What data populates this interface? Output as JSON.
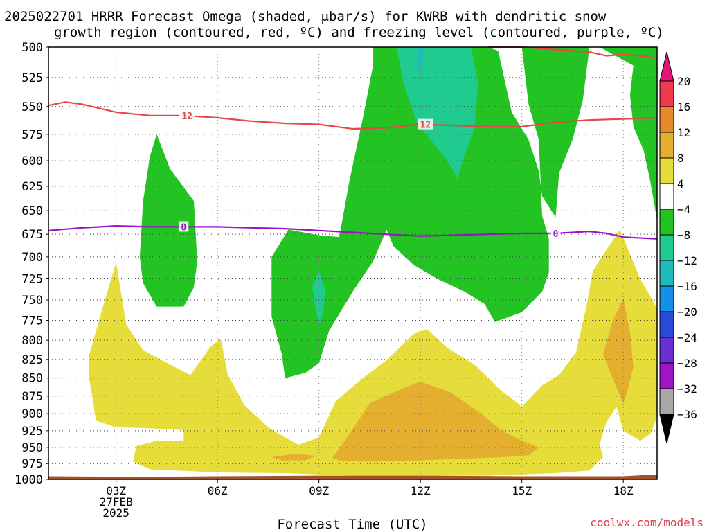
{
  "title_lines": [
    "2025022701 HRRR Forecast Omega (shaded, μbar/s) for KWRB with dendritic snow",
    "growth region (contoured, red, ºC) and freezing level (contoured, purple, ºC)"
  ],
  "credit": "coolwx.com/models",
  "chart_data": {
    "type": "heatmap",
    "xlabel": "Forecast Time (UTC)",
    "x_ticks": [
      {
        "hour": 3,
        "lines": [
          "03Z",
          "27FEB",
          "2025"
        ]
      },
      {
        "hour": 6,
        "lines": [
          "06Z"
        ]
      },
      {
        "hour": 9,
        "lines": [
          "09Z"
        ]
      },
      {
        "hour": 12,
        "lines": [
          "12Z"
        ]
      },
      {
        "hour": 15,
        "lines": [
          "15Z"
        ]
      },
      {
        "hour": 18,
        "lines": [
          "18Z"
        ]
      }
    ],
    "xlim": [
      1,
      19
    ],
    "ylim": [
      1000,
      500
    ],
    "y_ticks": [
      500,
      525,
      550,
      575,
      600,
      625,
      650,
      675,
      700,
      725,
      750,
      775,
      800,
      825,
      850,
      875,
      900,
      925,
      950,
      975,
      1000
    ],
    "y_scale": "log-pressure (inverted)",
    "grid": true,
    "colorbar": {
      "levels": [
        -36,
        -32,
        -28,
        -24,
        -20,
        -16,
        -12,
        -8,
        -4,
        4,
        8,
        12,
        16,
        20
      ],
      "labels": [
        "20",
        "16",
        "12",
        "8",
        "4",
        "−4",
        "−8",
        "−12",
        "−16",
        "−20",
        "−24",
        "−28",
        "−32",
        "−36"
      ],
      "colors_top_to_bottom": [
        "#ee3b4c",
        "#e88a2a",
        "#e4ae2e",
        "#e6dc3a",
        "#ffffff",
        "#22c322",
        "#1fcb8e",
        "#1fbcbc",
        "#1490e6",
        "#2a4ad8",
        "#6a2ed4",
        "#a014c8",
        "#a8a8a8"
      ],
      "over_color": "#e8127a",
      "under_color": "#000000"
    },
    "shaded_regions": [
      {
        "value_class": "4 to 8",
        "color": "#e6dc3a",
        "points": [
          [
            2.2,
            820
          ],
          [
            2.6,
            760
          ],
          [
            3.0,
            706
          ],
          [
            3.3,
            780
          ],
          [
            3.8,
            813
          ],
          [
            4.6,
            832
          ],
          [
            5.2,
            846
          ],
          [
            5.8,
            808
          ],
          [
            6.1,
            798
          ],
          [
            6.3,
            845
          ],
          [
            6.8,
            888
          ],
          [
            7.5,
            920
          ],
          [
            8.0,
            935
          ],
          [
            8.4,
            946
          ],
          [
            9.0,
            935
          ],
          [
            9.5,
            882
          ],
          [
            10.3,
            850
          ],
          [
            11.0,
            826
          ],
          [
            11.8,
            792
          ],
          [
            12.2,
            786
          ],
          [
            12.8,
            810
          ],
          [
            13.6,
            832
          ],
          [
            14.4,
            868
          ],
          [
            14.8,
            882
          ],
          [
            15.0,
            890
          ],
          [
            15.6,
            860
          ],
          [
            16.1,
            846
          ],
          [
            16.6,
            816
          ],
          [
            16.9,
            760
          ],
          [
            17.1,
            716
          ],
          [
            17.5,
            692
          ],
          [
            17.9,
            670
          ],
          [
            18.5,
            725
          ],
          [
            19.0,
            760
          ],
          [
            19.0,
            905
          ],
          [
            18.8,
            930
          ],
          [
            18.5,
            940
          ],
          [
            18.0,
            925
          ],
          [
            17.8,
            890
          ],
          [
            17.5,
            912
          ],
          [
            17.3,
            945
          ],
          [
            17.4,
            965
          ],
          [
            17.0,
            986
          ],
          [
            16.0,
            990
          ],
          [
            14.0,
            994
          ],
          [
            12.0,
            994
          ],
          [
            10.0,
            994
          ],
          [
            8.0,
            990
          ],
          [
            6.0,
            989
          ],
          [
            4.0,
            984
          ],
          [
            3.5,
            972
          ],
          [
            3.6,
            948
          ],
          [
            4.2,
            940
          ],
          [
            5.0,
            940
          ],
          [
            5.0,
            924
          ],
          [
            3.8,
            921
          ],
          [
            3.0,
            920
          ],
          [
            2.4,
            910
          ],
          [
            2.3,
            876
          ],
          [
            2.2,
            850
          ]
        ]
      },
      {
        "value_class": "8 to 12",
        "color": "#e4ae2e",
        "points": [
          [
            9.4,
            966
          ],
          [
            9.9,
            930
          ],
          [
            10.5,
            885
          ],
          [
            11.6,
            862
          ],
          [
            12.0,
            855
          ],
          [
            12.9,
            870
          ],
          [
            13.8,
            900
          ],
          [
            14.4,
            925
          ],
          [
            15.0,
            940
          ],
          [
            15.5,
            950
          ],
          [
            15.2,
            962
          ],
          [
            14.5,
            965
          ],
          [
            13.5,
            967
          ],
          [
            12.0,
            970
          ],
          [
            10.5,
            972
          ],
          [
            9.6,
            970
          ]
        ]
      },
      {
        "value_class": "8 to 12",
        "color": "#e4ae2e",
        "points": [
          [
            7.6,
            965
          ],
          [
            8.3,
            960
          ],
          [
            8.9,
            963
          ],
          [
            8.6,
            970
          ],
          [
            7.9,
            970
          ]
        ]
      },
      {
        "value_class": "8 to 12",
        "color": "#e4ae2e",
        "points": [
          [
            17.4,
            818
          ],
          [
            17.7,
            774
          ],
          [
            18.0,
            748
          ],
          [
            18.2,
            790
          ],
          [
            18.3,
            835
          ],
          [
            18.1,
            872
          ],
          [
            18.0,
            886
          ],
          [
            17.7,
            852
          ]
        ]
      },
      {
        "value_class": "-8 to -4",
        "color": "#22c322",
        "points": [
          [
            3.7,
            700
          ],
          [
            3.8,
            640
          ],
          [
            4.0,
            596
          ],
          [
            4.2,
            575
          ],
          [
            4.6,
            608
          ],
          [
            5.3,
            640
          ],
          [
            5.4,
            705
          ],
          [
            5.3,
            735
          ],
          [
            5.0,
            758
          ],
          [
            4.2,
            758
          ],
          [
            3.8,
            730
          ]
        ]
      },
      {
        "value_class": "-8 to -4",
        "color": "#22c322",
        "points": [
          [
            7.6,
            700
          ],
          [
            8.1,
            670
          ],
          [
            8.4,
            672
          ],
          [
            9.0,
            676
          ],
          [
            9.6,
            678
          ],
          [
            9.9,
            620
          ],
          [
            10.3,
            560
          ],
          [
            10.6,
            515
          ],
          [
            10.6,
            500
          ],
          [
            14.0,
            500
          ],
          [
            14.3,
            503
          ],
          [
            14.7,
            555
          ],
          [
            15.2,
            580
          ],
          [
            15.5,
            610
          ],
          [
            15.6,
            635
          ],
          [
            16.0,
            657
          ],
          [
            16.1,
            612
          ],
          [
            16.5,
            580
          ],
          [
            16.8,
            545
          ],
          [
            17.0,
            500
          ],
          [
            15.0,
            500
          ],
          [
            15.2,
            548
          ],
          [
            15.5,
            580
          ],
          [
            15.6,
            655
          ],
          [
            15.8,
            680
          ],
          [
            15.8,
            718
          ],
          [
            15.6,
            740
          ],
          [
            15.0,
            765
          ],
          [
            14.2,
            777
          ],
          [
            13.9,
            755
          ],
          [
            13.3,
            740
          ],
          [
            12.5,
            725
          ],
          [
            11.8,
            709
          ],
          [
            11.2,
            688
          ],
          [
            11.0,
            670
          ],
          [
            10.6,
            705
          ],
          [
            10.0,
            740
          ],
          [
            9.3,
            788
          ],
          [
            9.0,
            830
          ],
          [
            8.6,
            843
          ],
          [
            8.0,
            850
          ],
          [
            7.9,
            818
          ],
          [
            7.6,
            770
          ]
        ]
      },
      {
        "value_class": "-8 to -4",
        "color": "#22c322",
        "points": [
          [
            17.3,
            500
          ],
          [
            18.5,
            500
          ],
          [
            19.0,
            500
          ],
          [
            19.0,
            660
          ],
          [
            18.8,
            620
          ],
          [
            18.6,
            590
          ],
          [
            18.3,
            568
          ],
          [
            18.2,
            540
          ],
          [
            18.3,
            515
          ]
        ]
      },
      {
        "value_class": "-12 to -8",
        "color": "#1fcb8e",
        "points": [
          [
            11.3,
            500
          ],
          [
            13.5,
            500
          ],
          [
            13.7,
            530
          ],
          [
            13.6,
            570
          ],
          [
            13.3,
            595
          ],
          [
            13.1,
            618
          ],
          [
            12.8,
            600
          ],
          [
            12.3,
            580
          ],
          [
            11.9,
            565
          ],
          [
            11.5,
            530
          ]
        ]
      },
      {
        "value_class": "-12 to -8",
        "color": "#1fcb8e",
        "points": [
          [
            8.8,
            735
          ],
          [
            9.0,
            715
          ],
          [
            9.2,
            740
          ],
          [
            9.1,
            770
          ],
          [
            9.0,
            780
          ],
          [
            8.9,
            760
          ]
        ]
      },
      {
        "value_class": "-16 to -12",
        "color": "#1fbcbc",
        "points": [
          [
            11.9,
            500
          ],
          [
            12.1,
            500
          ],
          [
            12.05,
            520
          ],
          [
            11.95,
            520
          ]
        ]
      }
    ],
    "series": [
      {
        "name": "dendritic snow growth region",
        "level_label": "12",
        "color": "#e84545",
        "x": [
          1.0,
          1.5,
          2.0,
          3.0,
          4.0,
          5.0,
          6.0,
          7.0,
          8.0,
          9.0,
          10.0,
          11.0,
          12.0,
          13.0,
          14.0,
          15.0,
          16.0,
          17.0,
          18.0,
          19.0
        ],
        "y": [
          549,
          546,
          548,
          555,
          558,
          558,
          560,
          563,
          565,
          566,
          570,
          569,
          566,
          567,
          568,
          568,
          564,
          562,
          561,
          560
        ]
      },
      {
        "name": "freezing level",
        "level_label": "0",
        "color": "#9a12c8",
        "x": [
          1.0,
          2.0,
          3.0,
          4.0,
          5.0,
          6.0,
          7.0,
          8.0,
          9.0,
          10.0,
          11.0,
          12.0,
          13.0,
          14.0,
          15.0,
          16.0,
          17.0,
          17.5,
          18.0,
          19.0
        ],
        "y": [
          671,
          668,
          666,
          667,
          667,
          667,
          668,
          669,
          671,
          673,
          675,
          677,
          676,
          675,
          674,
          674,
          672,
          674,
          678,
          680
        ]
      },
      {
        "name": "dendritic snow growth region (upper)",
        "level_label": "",
        "color": "#e84545",
        "x": [
          14.0,
          15.0,
          16.0,
          17.0,
          17.5,
          18.0,
          18.5,
          19.0
        ],
        "y": [
          500,
          500,
          502,
          504,
          507,
          506,
          507,
          509
        ]
      }
    ],
    "contour_labels": [
      {
        "text": "12",
        "x": 5.1,
        "y": 558,
        "color": "#e84545"
      },
      {
        "text": "12",
        "x": 12.15,
        "y": 566,
        "color": "#e84545"
      },
      {
        "text": "0",
        "x": 5.0,
        "y": 667,
        "color": "#9a12c8"
      },
      {
        "text": "0",
        "x": 16.0,
        "y": 674,
        "color": "#9a12c8"
      }
    ],
    "terrain": {
      "color": "#a0522d",
      "x": [
        1.0,
        4.0,
        6.0,
        9.0,
        12.0,
        15.0,
        18.0,
        19.0
      ],
      "y": [
        995,
        996,
        995,
        994,
        994,
        995,
        995,
        992
      ]
    }
  }
}
